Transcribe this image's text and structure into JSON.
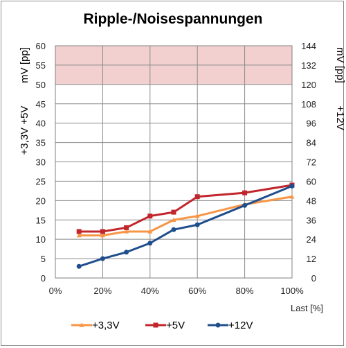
{
  "chart_data": {
    "type": "line",
    "title": "Ripple-/Noisespannungen",
    "xlabel": "Last [%]",
    "ylabel_left": "+3,3V  +5V",
    "ylabel_left_unit": "mV [pp]",
    "ylabel_right": "+12V",
    "ylabel_right_unit": "mV [pp]",
    "x_ticks": [
      "0%",
      "20%",
      "40%",
      "60%",
      "80%",
      "100%"
    ],
    "xlim": [
      0,
      100
    ],
    "y_left_ticks": [
      "0",
      "5",
      "10",
      "15",
      "20",
      "25",
      "30",
      "35",
      "40",
      "45",
      "50",
      "55",
      "60"
    ],
    "ylim_left": [
      0,
      60
    ],
    "y_right_ticks": [
      "0",
      "12",
      "24",
      "36",
      "48",
      "60",
      "72",
      "84",
      "96",
      "108",
      "120",
      "132",
      "144"
    ],
    "ylim_right": [
      0,
      144
    ],
    "limit_band": {
      "from": 50,
      "to": 60,
      "axis": "left",
      "color": "#f2d0d0"
    },
    "grid": true,
    "legend_position": "bottom",
    "series": [
      {
        "name": "+3,3V",
        "axis": "left",
        "color": "#f79646",
        "marker": "triangle",
        "x": [
          10,
          20,
          30,
          40,
          50,
          60,
          80,
          100
        ],
        "values": [
          11,
          11,
          12,
          12,
          15,
          16,
          19,
          21
        ]
      },
      {
        "name": "+5V",
        "axis": "left",
        "color": "#c0262c",
        "marker": "square",
        "x": [
          10,
          20,
          30,
          40,
          50,
          60,
          80,
          100
        ],
        "values": [
          12,
          12,
          13,
          16,
          17,
          21,
          22,
          24
        ]
      },
      {
        "name": "+12V",
        "axis": "right",
        "color": "#1f4e8c",
        "marker": "circle",
        "x": [
          10,
          20,
          30,
          40,
          50,
          60,
          80,
          100
        ],
        "values": [
          7.2,
          12,
          16,
          21.6,
          30,
          33,
          45,
          57
        ]
      }
    ]
  }
}
